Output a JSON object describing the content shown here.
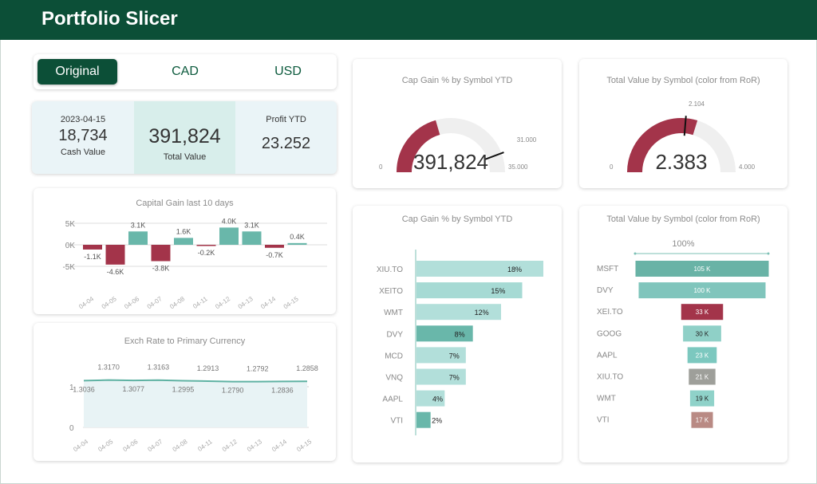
{
  "header": {
    "title": "Portfolio Slicer"
  },
  "currency_toggle": {
    "options": [
      "Original",
      "CAD",
      "USD"
    ],
    "selected": "Original"
  },
  "kpis": {
    "date": "2023-04-15",
    "cash_value": "18,734",
    "cash_label": "Cash Value",
    "total_value": "391,824",
    "total_label": "Total Value",
    "profit_label": "Profit YTD",
    "profit_value": "23.252"
  },
  "colors": {
    "brand": "#0c4f37",
    "positive": "#69b7aa",
    "negative": "#a3344a",
    "track": "#efefef"
  },
  "chart_data": [
    {
      "type": "bar",
      "title": "Capital Gain last 10 days",
      "categories": [
        "04-04",
        "04-05",
        "04-06",
        "04-07",
        "04-08",
        "04-11",
        "04-12",
        "04-13",
        "04-14",
        "04-15"
      ],
      "values": [
        -1.1,
        -4.6,
        3.1,
        -3.8,
        1.6,
        -0.2,
        4.0,
        3.1,
        -0.7,
        0.4
      ],
      "data_labels": [
        "-1.1K",
        "-4.6K",
        "3.1K",
        "-3.8K",
        "1.6K",
        "-0.2K",
        "4.0K",
        "3.1K",
        "-0.7K",
        "0.4K"
      ],
      "yticks": [
        "5K",
        "0K",
        "-5K"
      ],
      "ylim": [
        -5,
        5
      ],
      "unit": "K"
    },
    {
      "type": "area",
      "title": "Exch Rate to Primary Currency",
      "categories": [
        "04-04",
        "04-05",
        "04-06",
        "04-07",
        "04-08",
        "04-11",
        "04-12",
        "04-13",
        "04-14",
        "04-15"
      ],
      "values": [
        1.3036,
        1.317,
        1.3077,
        1.3163,
        1.2995,
        1.2913,
        1.279,
        1.2792,
        1.2836,
        1.2858
      ],
      "data_labels": [
        "1.3036",
        "1.3170",
        "1.3077",
        "1.3163",
        "1.2995",
        "1.2913",
        "1.2790",
        "1.2792",
        "1.2836",
        "1.2858"
      ],
      "yticks": [
        "1",
        "0"
      ]
    },
    {
      "type": "gauge",
      "title": "Cap Gain % by Symbol YTD",
      "value_label": "391,824",
      "min_label": "0",
      "max_label": "35.000",
      "target_label": "31.000",
      "min": 0,
      "max": 35,
      "target": 31,
      "fill_fraction": 0.41
    },
    {
      "type": "gauge",
      "title": "Total Value by Symbol (color from RoR)",
      "value_label": "2.383",
      "min_label": "0",
      "max_label": "4.000",
      "target_label": "2.104",
      "min": 0,
      "max": 4,
      "target": 2.104,
      "value": 2.383
    },
    {
      "type": "bar",
      "orientation": "horizontal",
      "title": "Cap Gain % by Symbol YTD",
      "categories": [
        "XIU.TO",
        "XEITO",
        "WMT",
        "DVY",
        "MCD",
        "VNQ",
        "AAPL",
        "VTI"
      ],
      "values": [
        18,
        15,
        12,
        8,
        7,
        7,
        4,
        2
      ],
      "data_labels": [
        "18%",
        "15%",
        "12%",
        "8%",
        "7%",
        "7%",
        "4%",
        "2%"
      ],
      "colors": [
        "#b2dfda",
        "#a6dad4",
        "#b2dfda",
        "#69b7aa",
        "#b2dfda",
        "#b2dfda",
        "#b2dfda",
        "#69b7aa"
      ]
    },
    {
      "type": "funnel",
      "title": "Total Value by Symbol (color from RoR)",
      "top_label": "100%",
      "categories": [
        "MSFT",
        "DVY",
        "XEI.TO",
        "GOOG",
        "AAPL",
        "XIU.TO",
        "WMT",
        "VTI"
      ],
      "values": [
        105,
        100,
        33,
        30,
        23,
        21,
        19,
        17
      ],
      "data_labels": [
        "105 K",
        "100 K",
        "33 K",
        "30 K",
        "23 K",
        "21 K",
        "19 K",
        "17 K"
      ],
      "colors": [
        "#69b3a6",
        "#80c5bc",
        "#a3344a",
        "#8fd0c7",
        "#7cc8bf",
        "#9e9f9a",
        "#8fd2c9",
        "#b98a84"
      ],
      "label_colors": [
        "#fff",
        "#fff",
        "#fff",
        "#222",
        "#fff",
        "#fff",
        "#222",
        "#fff"
      ]
    }
  ]
}
